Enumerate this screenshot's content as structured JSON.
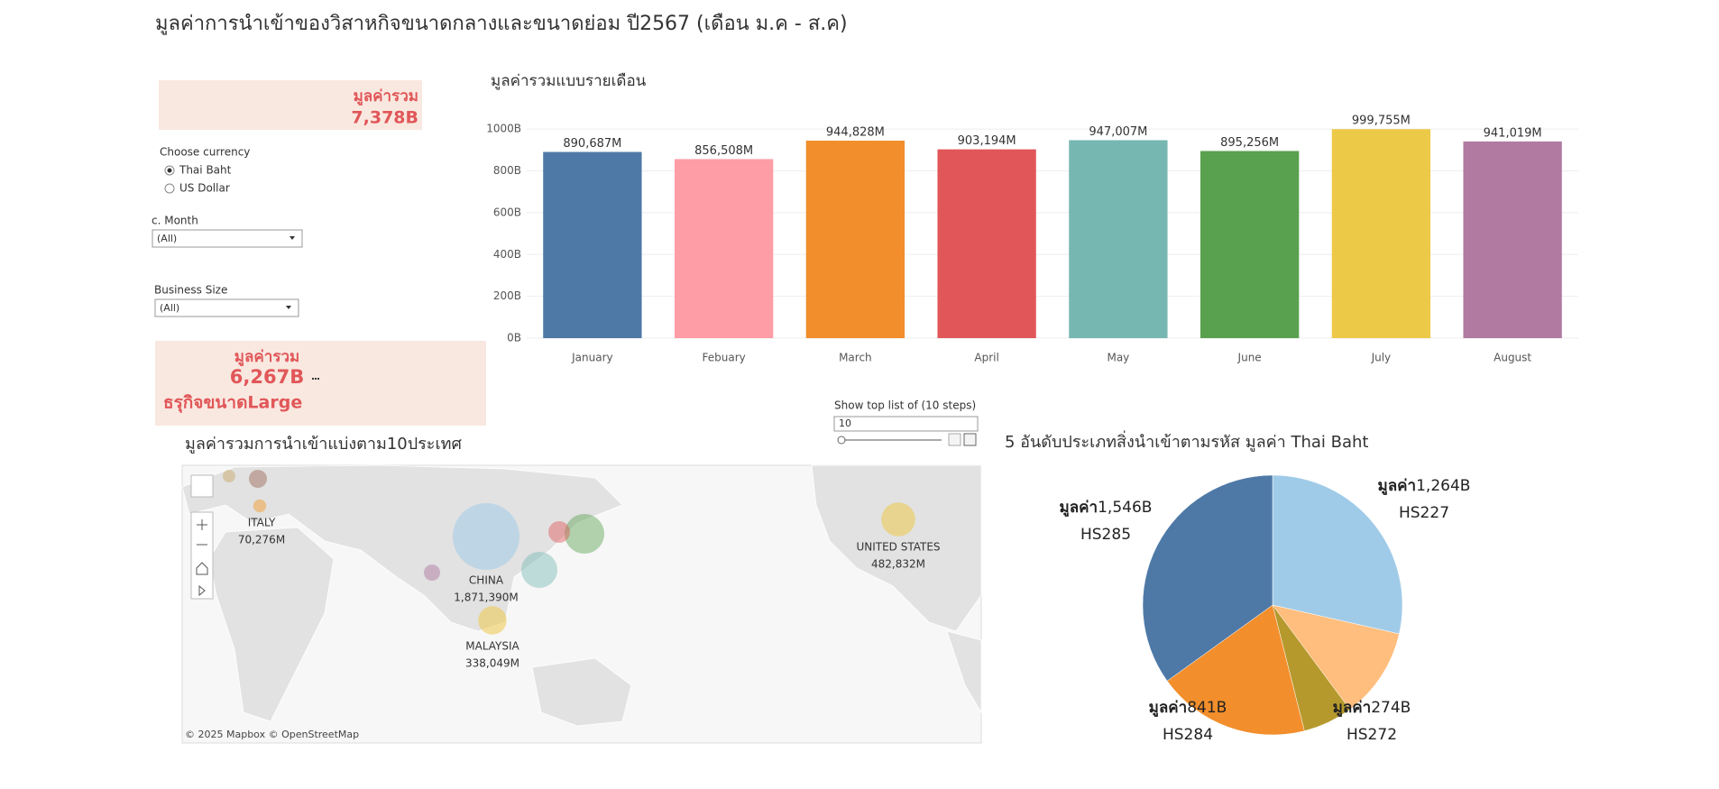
{
  "title": "มูลค่าการนำเข้าของวิสาหกิจขนาดกลางและขนาดย่อม ปี2567 (เดือน ม.ค - ส.ค)",
  "kpi_total": {
    "label": "มูลค่ารวม",
    "value": "7,378B"
  },
  "currency": {
    "label": "Choose currency",
    "options": [
      "Thai Baht",
      "US Dollar"
    ],
    "selected": 0
  },
  "month_filter": {
    "label": "c. Month",
    "value": "(All)"
  },
  "size_filter": {
    "label": "Business Size",
    "value": "(All)"
  },
  "kpi_size": {
    "label": "มูลค่ารวม",
    "value": "6,267B",
    "caption": "ธรุกิจขนาดLarge"
  },
  "top_list": {
    "label": "Show top list of (10 steps)",
    "value": "10"
  },
  "chart_data": [
    {
      "type": "bar",
      "title": "มูลค่ารวมแบบรายเดือน",
      "categories": [
        "January",
        "Febuary",
        "March",
        "April",
        "May",
        "June",
        "July",
        "August"
      ],
      "values": [
        890.687,
        856.508,
        944.828,
        903.194,
        947.007,
        895.256,
        999.755,
        941.019
      ],
      "value_labels": [
        "890,687M",
        "856,508M",
        "944,828M",
        "903,194M",
        "947,007M",
        "895,256M",
        "999,755M",
        "941,019M"
      ],
      "colors": [
        "#4e79a7",
        "#ff9da7",
        "#f28e2b",
        "#e15759",
        "#76b7b2",
        "#59a14f",
        "#edc948",
        "#b07aa1"
      ],
      "ylim": [
        0,
        1100
      ],
      "yticks": [
        {
          "value": 0,
          "label": "0B"
        },
        {
          "value": 200,
          "label": "200B"
        },
        {
          "value": 400,
          "label": "400B"
        },
        {
          "value": 600,
          "label": "600B"
        },
        {
          "value": 800,
          "label": "800B"
        },
        {
          "value": 1000,
          "label": "1000B"
        }
      ],
      "grid": true
    },
    {
      "type": "map",
      "title": "มูลค่ารวมการนำเข้าแบ่งตาม10ประเทศ",
      "categories": [
        "ITALY",
        "CHINA",
        "MALAYSIA",
        "UNITED STATES"
      ],
      "values": [
        70276,
        1871390,
        338049,
        482832
      ],
      "value_labels": [
        "70,276M",
        "1,871,390M",
        "338,049M",
        "482,832M"
      ],
      "colors": [
        "#f1a340",
        "#a0cbe8",
        "#edc948",
        "#edc948"
      ],
      "attribution": "© 2025 Mapbox  © OpenStreetMap"
    },
    {
      "type": "pie",
      "title": "5 อันดับประเภทสิ่งนำเข้าตามรหัส มูลค่า Thai Baht",
      "categories": [
        "HS227",
        null,
        "HS272",
        "HS284",
        "HS285"
      ],
      "values": [
        1264,
        500,
        274,
        841,
        1546
      ],
      "value_labels": [
        "1,264B",
        null,
        "274B",
        "841B",
        "1,546B"
      ],
      "value_prefix": "มูลค่า",
      "colors": [
        "#a0cbe8",
        "#ffbe7d",
        "#b6992d",
        "#f28e2b",
        "#4e79a7"
      ]
    }
  ]
}
